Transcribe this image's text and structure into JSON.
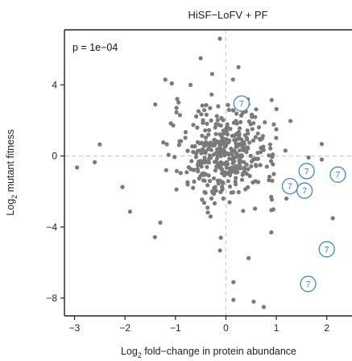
{
  "chart_data": {
    "type": "scatter",
    "title": "HiSF−LoFV + PF",
    "xlabel_prefix": "Log",
    "xlabel_sub": "2",
    "xlabel_suffix": " fold−change in protein abundance",
    "ylabel_prefix": "Log",
    "ylabel_sub": "2",
    "ylabel_suffix": " mutant fitness",
    "annotation": "p = 1e−04",
    "xlim": [
      -3.2,
      2.5
    ],
    "ylim": [
      -9.0,
      7.1
    ],
    "xticks": [
      -3,
      -2,
      -1,
      0,
      1,
      2
    ],
    "xtick_labels": [
      "−3",
      "−2",
      "−1",
      "0",
      "1",
      "2"
    ],
    "yticks": [
      -8,
      -4,
      0,
      4
    ],
    "ytick_labels": [
      "−8",
      "−4",
      "0",
      "4"
    ],
    "reference_lines": {
      "x": 0,
      "y": 0,
      "style": "dashed"
    },
    "grid": false,
    "point_color": "#7a7a7a",
    "highlight_color": "#3a8dc8",
    "highlight_label": "7",
    "highlight_points": [
      {
        "x": 0.31,
        "y": 2.95
      },
      {
        "x": 1.6,
        "y": -0.85
      },
      {
        "x": 2.22,
        "y": -1.05
      },
      {
        "x": 1.27,
        "y": -1.7
      },
      {
        "x": 1.56,
        "y": -1.95
      },
      {
        "x": 2.0,
        "y": -5.25
      },
      {
        "x": 1.63,
        "y": -7.2
      }
    ],
    "series_outliers": [
      {
        "x": -0.12,
        "y": 6.6
      },
      {
        "x": -0.5,
        "y": 5.5
      },
      {
        "x": -1.2,
        "y": 4.3
      },
      {
        "x": -1.4,
        "y": 2.9
      },
      {
        "x": -2.5,
        "y": 0.65
      },
      {
        "x": -2.6,
        "y": -0.35
      },
      {
        "x": -2.95,
        "y": -0.65
      },
      {
        "x": -2.05,
        "y": -1.75
      },
      {
        "x": -1.3,
        "y": -3.75
      },
      {
        "x": 2.12,
        "y": -3.5
      },
      {
        "x": 0.45,
        "y": -5.75
      },
      {
        "x": 0.15,
        "y": -7.1
      },
      {
        "x": 0.15,
        "y": -8.1
      },
      {
        "x": 0.55,
        "y": -8.2
      },
      {
        "x": 0.75,
        "y": -8.5
      },
      {
        "x": -0.1,
        "y": -4.6
      },
      {
        "x": 0.9,
        "y": -4.3
      },
      {
        "x": 1.2,
        "y": -2.4
      },
      {
        "x": 1.9,
        "y": -0.2
      },
      {
        "x": 1.0,
        "y": 1.5
      },
      {
        "x": 0.25,
        "y": 5.0
      },
      {
        "x": -0.7,
        "y": 4.0
      }
    ],
    "cluster": {
      "n": 420,
      "center": [
        0.0,
        0.15
      ],
      "sd": [
        0.52,
        1.35
      ]
    }
  }
}
